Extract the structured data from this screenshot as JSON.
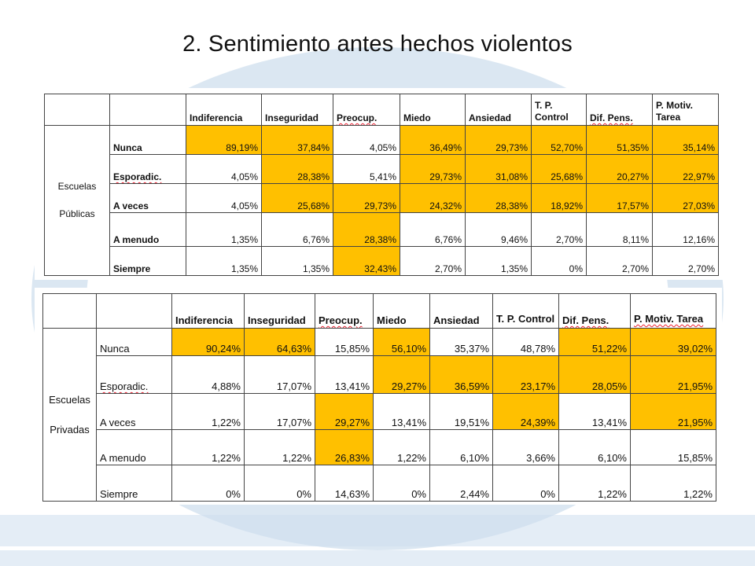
{
  "title": "2. Sentimiento antes hechos violentos",
  "columns": [
    {
      "label": "Indiferencia"
    },
    {
      "label": "Inseguridad"
    },
    {
      "label": "Preocup."
    },
    {
      "label": "Miedo"
    },
    {
      "label": "Ansiedad"
    },
    {
      "label": "T. P. Control"
    },
    {
      "label": "Dif. Pens."
    },
    {
      "label": "P. Motiv. Tarea"
    }
  ],
  "tables": [
    {
      "group_line1": "Escuelas",
      "group_line2": "Públicas",
      "rows": [
        {
          "label": "Nunca",
          "values": [
            "89,19%",
            "37,84%",
            "4,05%",
            "36,49%",
            "29,73%",
            "52,70%",
            "51,35%",
            "35,14%"
          ],
          "highlight": [
            true,
            true,
            false,
            true,
            true,
            true,
            true,
            true
          ]
        },
        {
          "label": "Esporadic.",
          "values": [
            "4,05%",
            "28,38%",
            "5,41%",
            "29,73%",
            "31,08%",
            "25,68%",
            "20,27%",
            "22,97%"
          ],
          "highlight": [
            false,
            true,
            false,
            true,
            true,
            true,
            true,
            true
          ]
        },
        {
          "label": "A veces",
          "values": [
            "4,05%",
            "25,68%",
            "29,73%",
            "24,32%",
            "28,38%",
            "18,92%",
            "17,57%",
            "27,03%"
          ],
          "highlight": [
            false,
            true,
            true,
            true,
            true,
            true,
            true,
            true
          ]
        },
        {
          "label": "A menudo",
          "values": [
            "1,35%",
            "6,76%",
            "28,38%",
            "6,76%",
            "9,46%",
            "2,70%",
            "8,11%",
            "12,16%"
          ],
          "highlight": [
            false,
            false,
            true,
            false,
            false,
            false,
            false,
            false
          ]
        },
        {
          "label": "Siempre",
          "values": [
            "1,35%",
            "1,35%",
            "32,43%",
            "2,70%",
            "1,35%",
            "0%",
            "2,70%",
            "2,70%"
          ],
          "highlight": [
            false,
            false,
            true,
            false,
            false,
            false,
            false,
            false
          ]
        }
      ]
    },
    {
      "group_line1": "Escuelas",
      "group_line2": "Privadas",
      "rows": [
        {
          "label": "Nunca",
          "values": [
            "90,24%",
            "64,63%",
            "15,85%",
            "56,10%",
            "35,37%",
            "48,78%",
            "51,22%",
            "39,02%"
          ],
          "highlight": [
            true,
            true,
            false,
            true,
            false,
            false,
            true,
            true
          ]
        },
        {
          "label": "Esporadic.",
          "values": [
            "4,88%",
            "17,07%",
            "13,41%",
            "29,27%",
            "36,59%",
            "23,17%",
            "28,05%",
            "21,95%"
          ],
          "highlight": [
            false,
            false,
            false,
            true,
            true,
            true,
            true,
            true
          ]
        },
        {
          "label": "A veces",
          "values": [
            "1,22%",
            "17,07%",
            "29,27%",
            "13,41%",
            "19,51%",
            "24,39%",
            "13,41%",
            "21,95%"
          ],
          "highlight": [
            false,
            false,
            true,
            false,
            false,
            true,
            false,
            true
          ]
        },
        {
          "label": "A menudo",
          "values": [
            "1,22%",
            "1,22%",
            "26,83%",
            "1,22%",
            "6,10%",
            "3,66%",
            "6,10%",
            "15,85%"
          ],
          "highlight": [
            false,
            false,
            true,
            false,
            false,
            false,
            false,
            false
          ]
        },
        {
          "label": "Siempre",
          "values": [
            "0%",
            "0%",
            "14,63%",
            "0%",
            "2,44%",
            "0%",
            "1,22%",
            "1,22%"
          ],
          "highlight": [
            false,
            false,
            false,
            false,
            false,
            false,
            false,
            false
          ]
        }
      ]
    }
  ],
  "colors": {
    "highlight": "#ffc000",
    "watermark": "#bed4e8"
  }
}
